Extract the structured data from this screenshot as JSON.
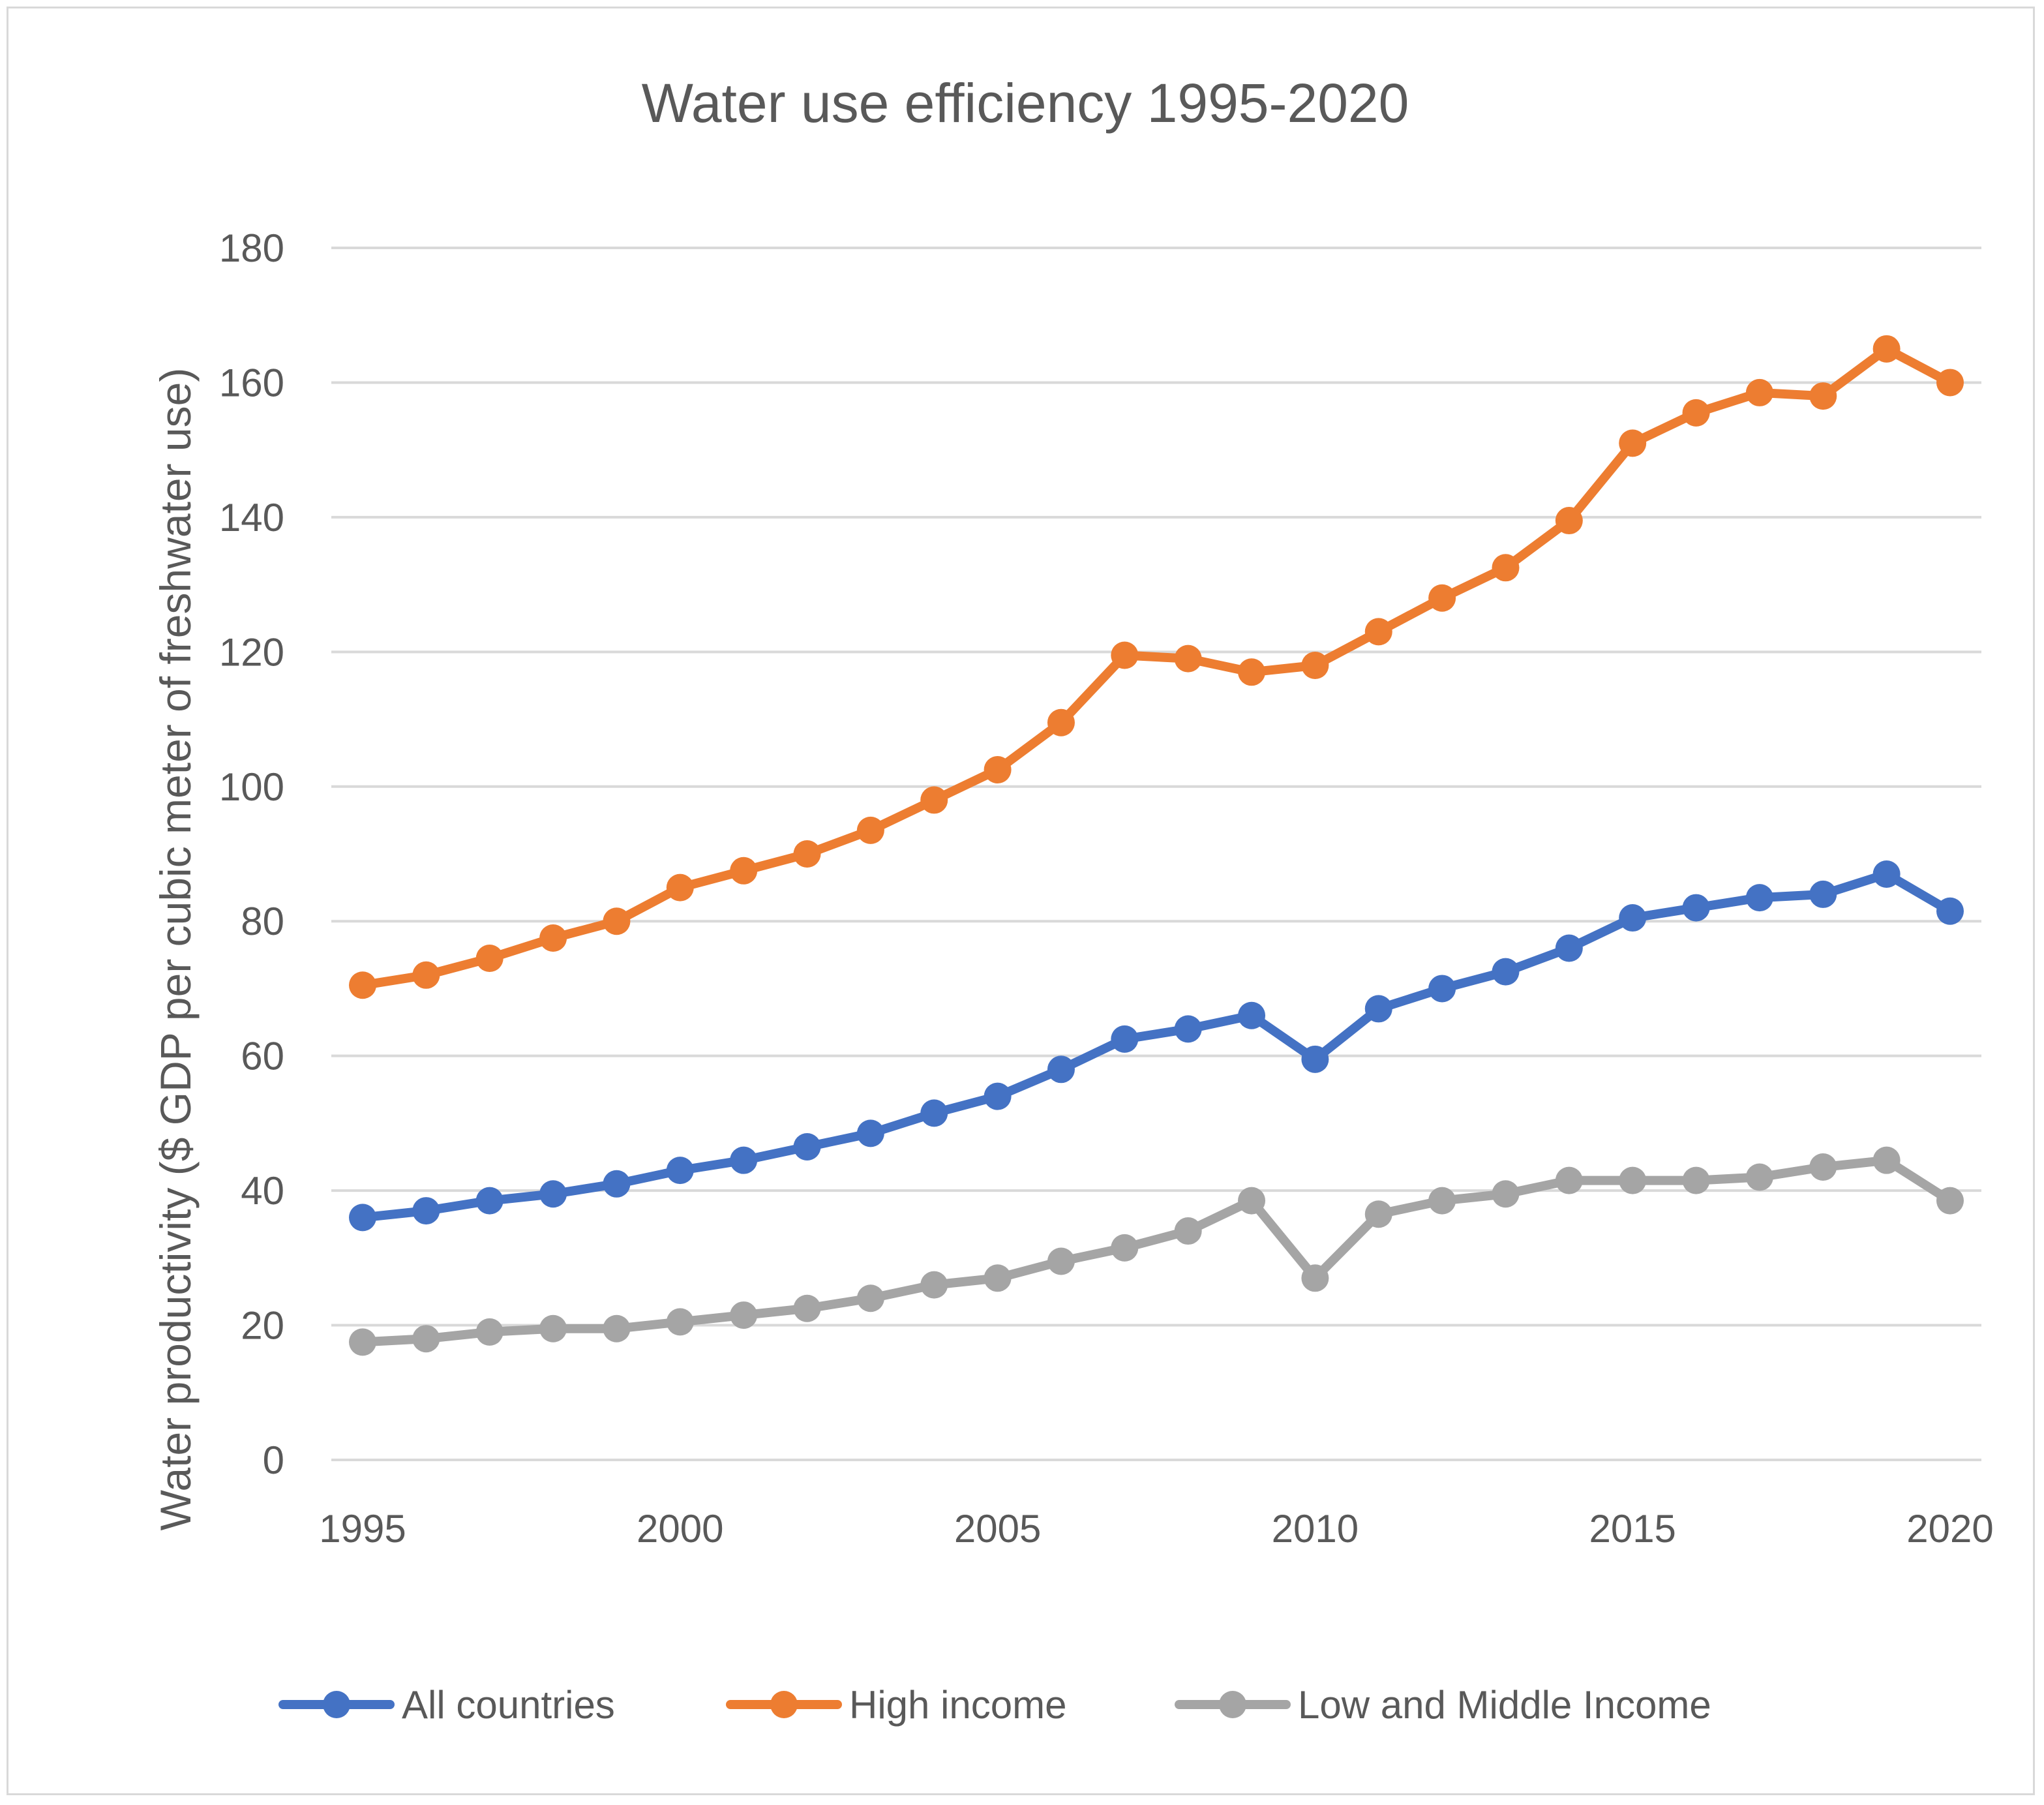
{
  "chart_data": {
    "type": "line",
    "title": "Water use efficiency 1995-2020",
    "xlabel": "",
    "ylabel": "Water productivity ($ GDP per cubic meter of freshwater use)",
    "xlim": [
      1995,
      2020
    ],
    "ylim": [
      0,
      180
    ],
    "x_ticks": [
      1995,
      2000,
      2005,
      2010,
      2015,
      2020
    ],
    "y_ticks": [
      0,
      20,
      40,
      60,
      80,
      100,
      120,
      140,
      160,
      180
    ],
    "grid": true,
    "legend_position": "bottom",
    "x": [
      1995,
      1996,
      1997,
      1998,
      1999,
      2000,
      2001,
      2002,
      2003,
      2004,
      2005,
      2006,
      2007,
      2008,
      2009,
      2010,
      2011,
      2012,
      2013,
      2014,
      2015,
      2016,
      2017,
      2018,
      2019,
      2020
    ],
    "series": [
      {
        "name": "All countries",
        "color": "#4472c4",
        "values": [
          36,
          37,
          38.5,
          39.5,
          41,
          43,
          44.5,
          46.5,
          48.5,
          51.5,
          54,
          58,
          62.5,
          64,
          66,
          59.5,
          67,
          70,
          72.5,
          76,
          80.5,
          82,
          83.5,
          84,
          87,
          81.5
        ]
      },
      {
        "name": "High income",
        "color": "#ed7d31",
        "values": [
          70.5,
          72,
          74.5,
          77.5,
          80,
          85,
          87.5,
          90,
          93.5,
          98,
          102.5,
          109.5,
          119.5,
          119,
          117,
          118,
          123,
          128,
          132.5,
          139.5,
          151,
          155.5,
          158.5,
          158,
          165,
          160
        ]
      },
      {
        "name": "Low and Middle Income",
        "color": "#a5a5a5",
        "values": [
          17.5,
          18,
          19,
          19.5,
          19.5,
          20.5,
          21.5,
          22.5,
          24,
          26,
          27,
          29.5,
          31.5,
          34,
          38.5,
          27,
          36.5,
          38.5,
          39.5,
          41.5,
          41.5,
          41.5,
          42,
          43.5,
          44.5,
          38.5
        ]
      }
    ]
  }
}
